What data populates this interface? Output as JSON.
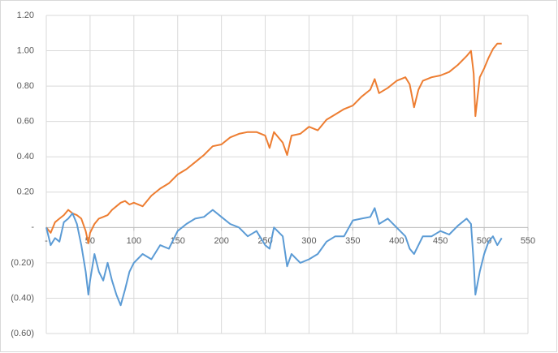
{
  "chart_data": {
    "type": "line",
    "x": [
      0,
      5,
      10,
      15,
      20,
      25,
      30,
      35,
      40,
      45,
      48,
      50,
      55,
      60,
      65,
      70,
      75,
      80,
      85,
      90,
      95,
      100,
      110,
      120,
      130,
      140,
      150,
      160,
      170,
      180,
      190,
      200,
      210,
      220,
      230,
      240,
      250,
      255,
      260,
      270,
      275,
      280,
      290,
      300,
      310,
      320,
      330,
      340,
      350,
      360,
      370,
      375,
      380,
      390,
      400,
      410,
      415,
      420,
      425,
      430,
      440,
      450,
      460,
      470,
      480,
      485,
      488,
      490,
      495,
      500,
      505,
      510,
      515,
      520
    ],
    "series": [
      {
        "color": "#ed7d31",
        "values": [
          0,
          -0.03,
          0.03,
          0.05,
          0.07,
          0.1,
          0.08,
          0.07,
          0.05,
          -0.02,
          -0.09,
          -0.03,
          0.02,
          0.05,
          0.06,
          0.07,
          0.1,
          0.12,
          0.14,
          0.15,
          0.13,
          0.14,
          0.12,
          0.18,
          0.22,
          0.25,
          0.3,
          0.33,
          0.37,
          0.41,
          0.46,
          0.47,
          0.51,
          0.53,
          0.54,
          0.54,
          0.52,
          0.45,
          0.54,
          0.48,
          0.41,
          0.52,
          0.53,
          0.57,
          0.55,
          0.61,
          0.64,
          0.67,
          0.69,
          0.74,
          0.78,
          0.84,
          0.76,
          0.79,
          0.83,
          0.85,
          0.81,
          0.68,
          0.78,
          0.83,
          0.85,
          0.86,
          0.88,
          0.92,
          0.97,
          1.0,
          0.87,
          0.63,
          0.85,
          0.9,
          0.96,
          1.01,
          1.04,
          1.04
        ]
      },
      {
        "color": "#5b9bd5",
        "values": [
          0,
          -0.1,
          -0.06,
          -0.08,
          0.03,
          0.05,
          0.08,
          0.02,
          -0.1,
          -0.25,
          -0.38,
          -0.3,
          -0.15,
          -0.25,
          -0.3,
          -0.2,
          -0.3,
          -0.38,
          -0.44,
          -0.35,
          -0.25,
          -0.2,
          -0.15,
          -0.18,
          -0.1,
          -0.12,
          -0.02,
          0.02,
          0.05,
          0.06,
          0.1,
          0.06,
          0.02,
          0.0,
          -0.05,
          -0.02,
          -0.1,
          -0.12,
          0.0,
          -0.05,
          -0.22,
          -0.15,
          -0.2,
          -0.18,
          -0.15,
          -0.08,
          -0.05,
          -0.05,
          0.04,
          0.05,
          0.06,
          0.11,
          0.02,
          0.05,
          0.0,
          -0.05,
          -0.12,
          -0.15,
          -0.1,
          -0.05,
          -0.05,
          -0.02,
          -0.04,
          0.01,
          0.05,
          0.02,
          -0.2,
          -0.38,
          -0.25,
          -0.15,
          -0.08,
          -0.05,
          -0.1,
          -0.06
        ]
      }
    ],
    "xlim": [
      0,
      550
    ],
    "xticks": [
      {
        "value": 0,
        "label": "-"
      },
      50,
      100,
      150,
      200,
      250,
      300,
      350,
      400,
      450,
      500,
      550
    ],
    "ylim": [
      -0.6,
      1.2
    ],
    "yticks": [
      {
        "value": -0.6,
        "label": "(0.60)"
      },
      {
        "value": -0.4,
        "label": "(0.40)"
      },
      {
        "value": -0.2,
        "label": "(0.20)"
      },
      {
        "value": 0,
        "label": "-"
      },
      {
        "value": 0.2,
        "label": "0.20"
      },
      {
        "value": 0.4,
        "label": "0.40"
      },
      {
        "value": 0.6,
        "label": "0.60"
      },
      {
        "value": 0.8,
        "label": "0.80"
      },
      {
        "value": 1.0,
        "label": "1.00"
      },
      {
        "value": 1.2,
        "label": "1.20"
      }
    ],
    "grid": true
  }
}
